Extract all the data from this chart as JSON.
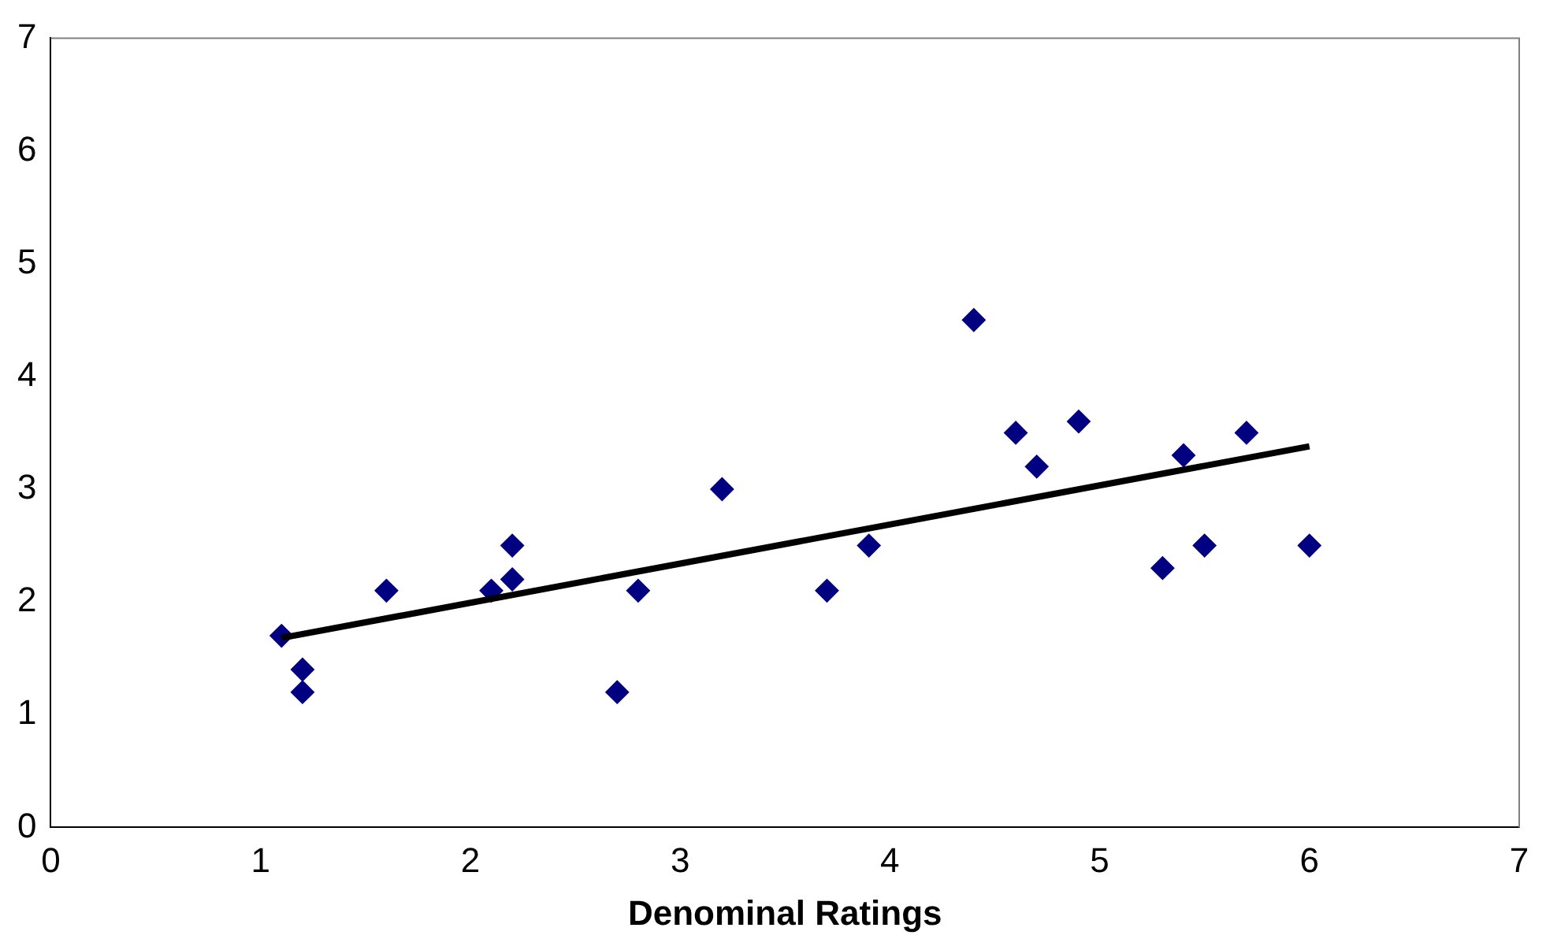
{
  "chart_data": {
    "type": "scatter",
    "xlabel": "Denominal Ratings",
    "xlim": [
      0,
      7
    ],
    "xticks": [
      0,
      1,
      2,
      3,
      4,
      5,
      6,
      7
    ],
    "ylim": [
      0,
      7
    ],
    "yticks": [
      0,
      1,
      2,
      3,
      4,
      5,
      6,
      7
    ],
    "grid": false,
    "marker": "diamond",
    "series": [
      {
        "type": "scatter",
        "color": "#000080",
        "x": [
          1.1,
          1.2,
          1.2,
          1.6,
          2.1,
          2.2,
          2.2,
          2.7,
          2.8,
          3.2,
          3.7,
          3.9,
          4.4,
          4.6,
          4.7,
          4.9,
          5.3,
          5.4,
          5.5,
          5.7,
          6.0
        ],
        "values": [
          1.7,
          1.4,
          1.2,
          2.1,
          2.1,
          2.5,
          2.2,
          1.2,
          2.1,
          3.0,
          2.1,
          2.5,
          4.5,
          3.5,
          3.2,
          3.6,
          2.3,
          3.3,
          2.5,
          3.5,
          2.5
        ]
      },
      {
        "type": "line",
        "color": "#000000",
        "marker": "none",
        "line_style": "solid",
        "x": [
          1.1,
          6.0
        ],
        "values": [
          1.68,
          3.38
        ]
      }
    ]
  }
}
